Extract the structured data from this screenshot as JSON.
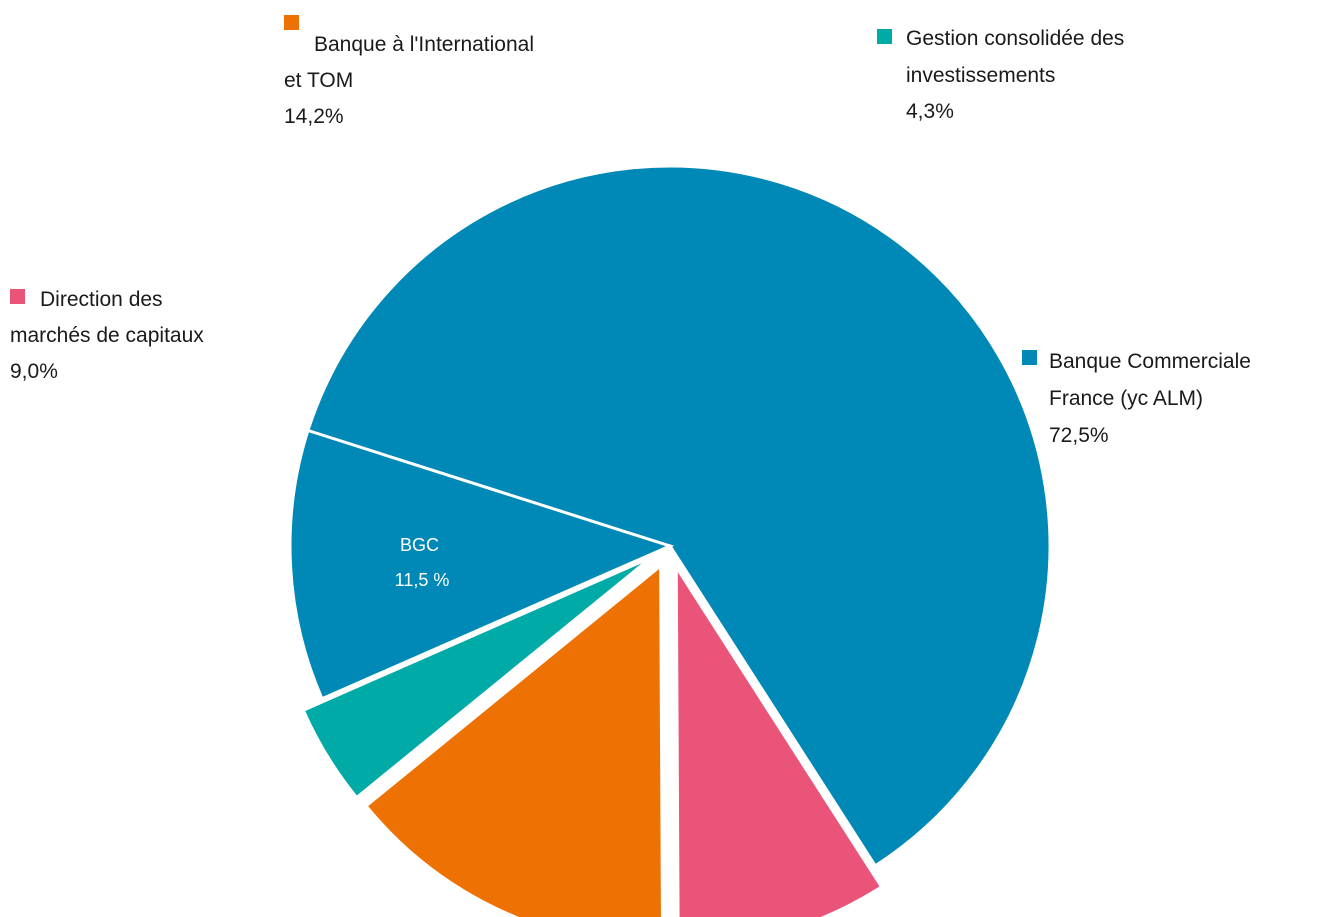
{
  "chart_data": {
    "type": "pie",
    "series": [
      {
        "name": "Banque Commerciale France (yc ALM)",
        "label_lines": [
          "Banque Commerciale",
          "France (yc ALM)"
        ],
        "value": 72.5,
        "value_label": "72,5%",
        "color": "#0088b6",
        "exploded": false,
        "sub_slice": {
          "label_lines": [
            "BGC",
            "11,5 %"
          ],
          "value": 11.5,
          "value_label": "11,5 %"
        }
      },
      {
        "name": "Direction des marchés de capitaux",
        "label_lines": [
          "Direction des",
          "marchés de capitaux"
        ],
        "value": 9.0,
        "value_label": "9,0%",
        "color": "#e95478",
        "exploded": true
      },
      {
        "name": "Banque à l'International et TOM",
        "label_lines": [
          "Banque à l'International",
          "et TOM"
        ],
        "value": 14.2,
        "value_label": "14,2%",
        "color": "#ee7203",
        "exploded": true
      },
      {
        "name": "Gestion consolidée des investissements",
        "label_lines": [
          "Gestion consolidée des",
          "investissements"
        ],
        "value": 4.3,
        "value_label": "4,3%",
        "color": "#00aaa6",
        "exploded": true
      }
    ],
    "title": "",
    "legend": "inline-labels"
  }
}
